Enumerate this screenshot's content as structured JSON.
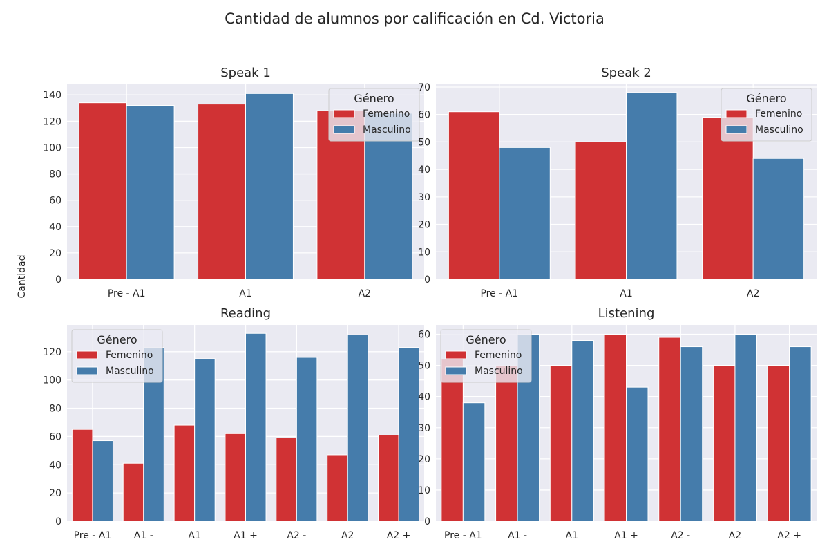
{
  "figure": {
    "suptitle": "Cantidad de alumnos por calificación en Cd. Victoria",
    "ylabel": "Cantidad"
  },
  "colors": {
    "Femenino": "#d03234",
    "Masculino": "#457cab",
    "plot_bg": "#eaeaf2",
    "grid": "#ffffff"
  },
  "chart_data": [
    {
      "type": "bar",
      "title": "Speak 1",
      "categories": [
        "Pre - A1",
        "A1",
        "A2"
      ],
      "series": [
        {
          "name": "Femenino",
          "values": [
            134,
            133,
            128
          ]
        },
        {
          "name": "Masculino",
          "values": [
            132,
            141,
            126
          ]
        }
      ],
      "ylim": [
        0,
        148
      ],
      "yticks": [
        0,
        20,
        40,
        60,
        80,
        100,
        120,
        140
      ],
      "legend": {
        "title": "Género",
        "placement": "top-right"
      }
    },
    {
      "type": "bar",
      "title": "Speak 2",
      "categories": [
        "Pre - A1",
        "A1",
        "A2"
      ],
      "series": [
        {
          "name": "Femenino",
          "values": [
            61,
            50,
            59
          ]
        },
        {
          "name": "Masculino",
          "values": [
            48,
            68,
            44
          ]
        }
      ],
      "ylim": [
        0,
        71
      ],
      "yticks": [
        0,
        10,
        20,
        30,
        40,
        50,
        60,
        70
      ],
      "legend": {
        "title": "Género",
        "placement": "top-right"
      }
    },
    {
      "type": "bar",
      "title": "Reading",
      "categories": [
        "Pre - A1",
        "A1 -",
        "A1",
        "A1 +",
        "A2 -",
        "A2",
        "A2 +"
      ],
      "series": [
        {
          "name": "Femenino",
          "values": [
            65,
            41,
            68,
            62,
            59,
            47,
            61
          ]
        },
        {
          "name": "Masculino",
          "values": [
            57,
            123,
            115,
            133,
            116,
            132,
            123
          ]
        }
      ],
      "ylim": [
        0,
        139
      ],
      "yticks": [
        0,
        20,
        40,
        60,
        80,
        100,
        120
      ],
      "legend": {
        "title": "Género",
        "placement": "top-left"
      }
    },
    {
      "type": "bar",
      "title": "Listening",
      "categories": [
        "Pre - A1",
        "A1 -",
        "A1",
        "A1 +",
        "A2 -",
        "A2",
        "A2 +"
      ],
      "series": [
        {
          "name": "Femenino",
          "values": [
            52,
            50,
            50,
            60,
            59,
            50,
            50
          ]
        },
        {
          "name": "Masculino",
          "values": [
            38,
            60,
            58,
            43,
            56,
            60,
            56
          ]
        }
      ],
      "ylim": [
        0,
        63
      ],
      "yticks": [
        0,
        10,
        20,
        30,
        40,
        50,
        60
      ],
      "legend": {
        "title": "Género",
        "placement": "top-left"
      }
    }
  ]
}
